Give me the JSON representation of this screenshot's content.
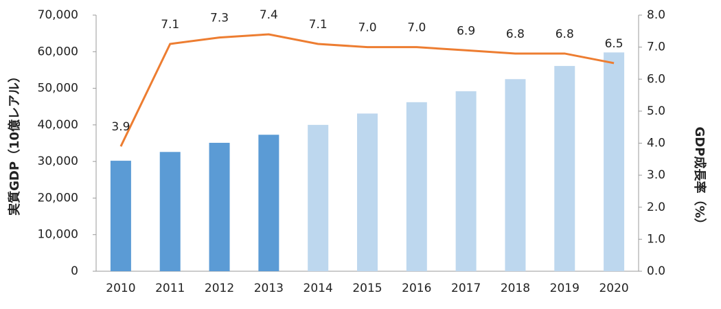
{
  "chart_data": {
    "type": "bar",
    "y_label": "実質GDP（10億レアル）",
    "y2_label": "GDP成長率（%）",
    "categories": [
      "2010",
      "2011",
      "2012",
      "2013",
      "2014",
      "2015",
      "2016",
      "2017",
      "2018",
      "2019",
      "2020"
    ],
    "series": [
      {
        "type": "bar",
        "colors": [
          "#5b9bd5",
          "#5b9bd5",
          "#5b9bd5",
          "#5b9bd5",
          "#bdd7ee",
          "#bdd7ee",
          "#bdd7ee",
          "#bdd7ee",
          "#bdd7ee",
          "#bdd7ee",
          "#bdd7ee"
        ],
        "values": [
          30200,
          32600,
          35100,
          37300,
          40000,
          43100,
          46200,
          49200,
          52500,
          56100,
          59800
        ]
      },
      {
        "type": "line",
        "axis": "y2",
        "color": "#ed7d31",
        "values": [
          3.9,
          7.1,
          7.3,
          7.4,
          7.1,
          7.0,
          7.0,
          6.9,
          6.8,
          6.8,
          6.5
        ],
        "value_labels": [
          "3.9",
          "7.1",
          "7.3",
          "7.4",
          "7.1",
          "7.0",
          "7.0",
          "6.9",
          "6.8",
          "6.8",
          "6.5"
        ]
      }
    ],
    "ylim": [
      0,
      70000
    ],
    "yticks": [
      0,
      {
        "value": 10000,
        "label": "10,000"
      },
      {
        "value": 20000,
        "label": "20,000"
      },
      {
        "value": 30000,
        "label": "30,000"
      },
      {
        "value": 40000,
        "label": "40,000"
      },
      {
        "value": 50000,
        "label": "50,000"
      },
      {
        "value": 60000,
        "label": "60,000"
      },
      {
        "value": 70000,
        "label": "70,000"
      }
    ],
    "y2lim": [
      0,
      8
    ],
    "y2ticks": [
      {
        "value": 0,
        "label": "0.0"
      },
      {
        "value": 1,
        "label": "1.0"
      },
      {
        "value": 2,
        "label": "2.0"
      },
      {
        "value": 3,
        "label": "3.0"
      },
      {
        "value": 4,
        "label": "4.0"
      },
      {
        "value": 5,
        "label": "5.0"
      },
      {
        "value": 6,
        "label": "6.0"
      },
      {
        "value": 7,
        "label": "7.0"
      },
      {
        "value": 8,
        "label": "8.0"
      }
    ],
    "grid": false
  }
}
